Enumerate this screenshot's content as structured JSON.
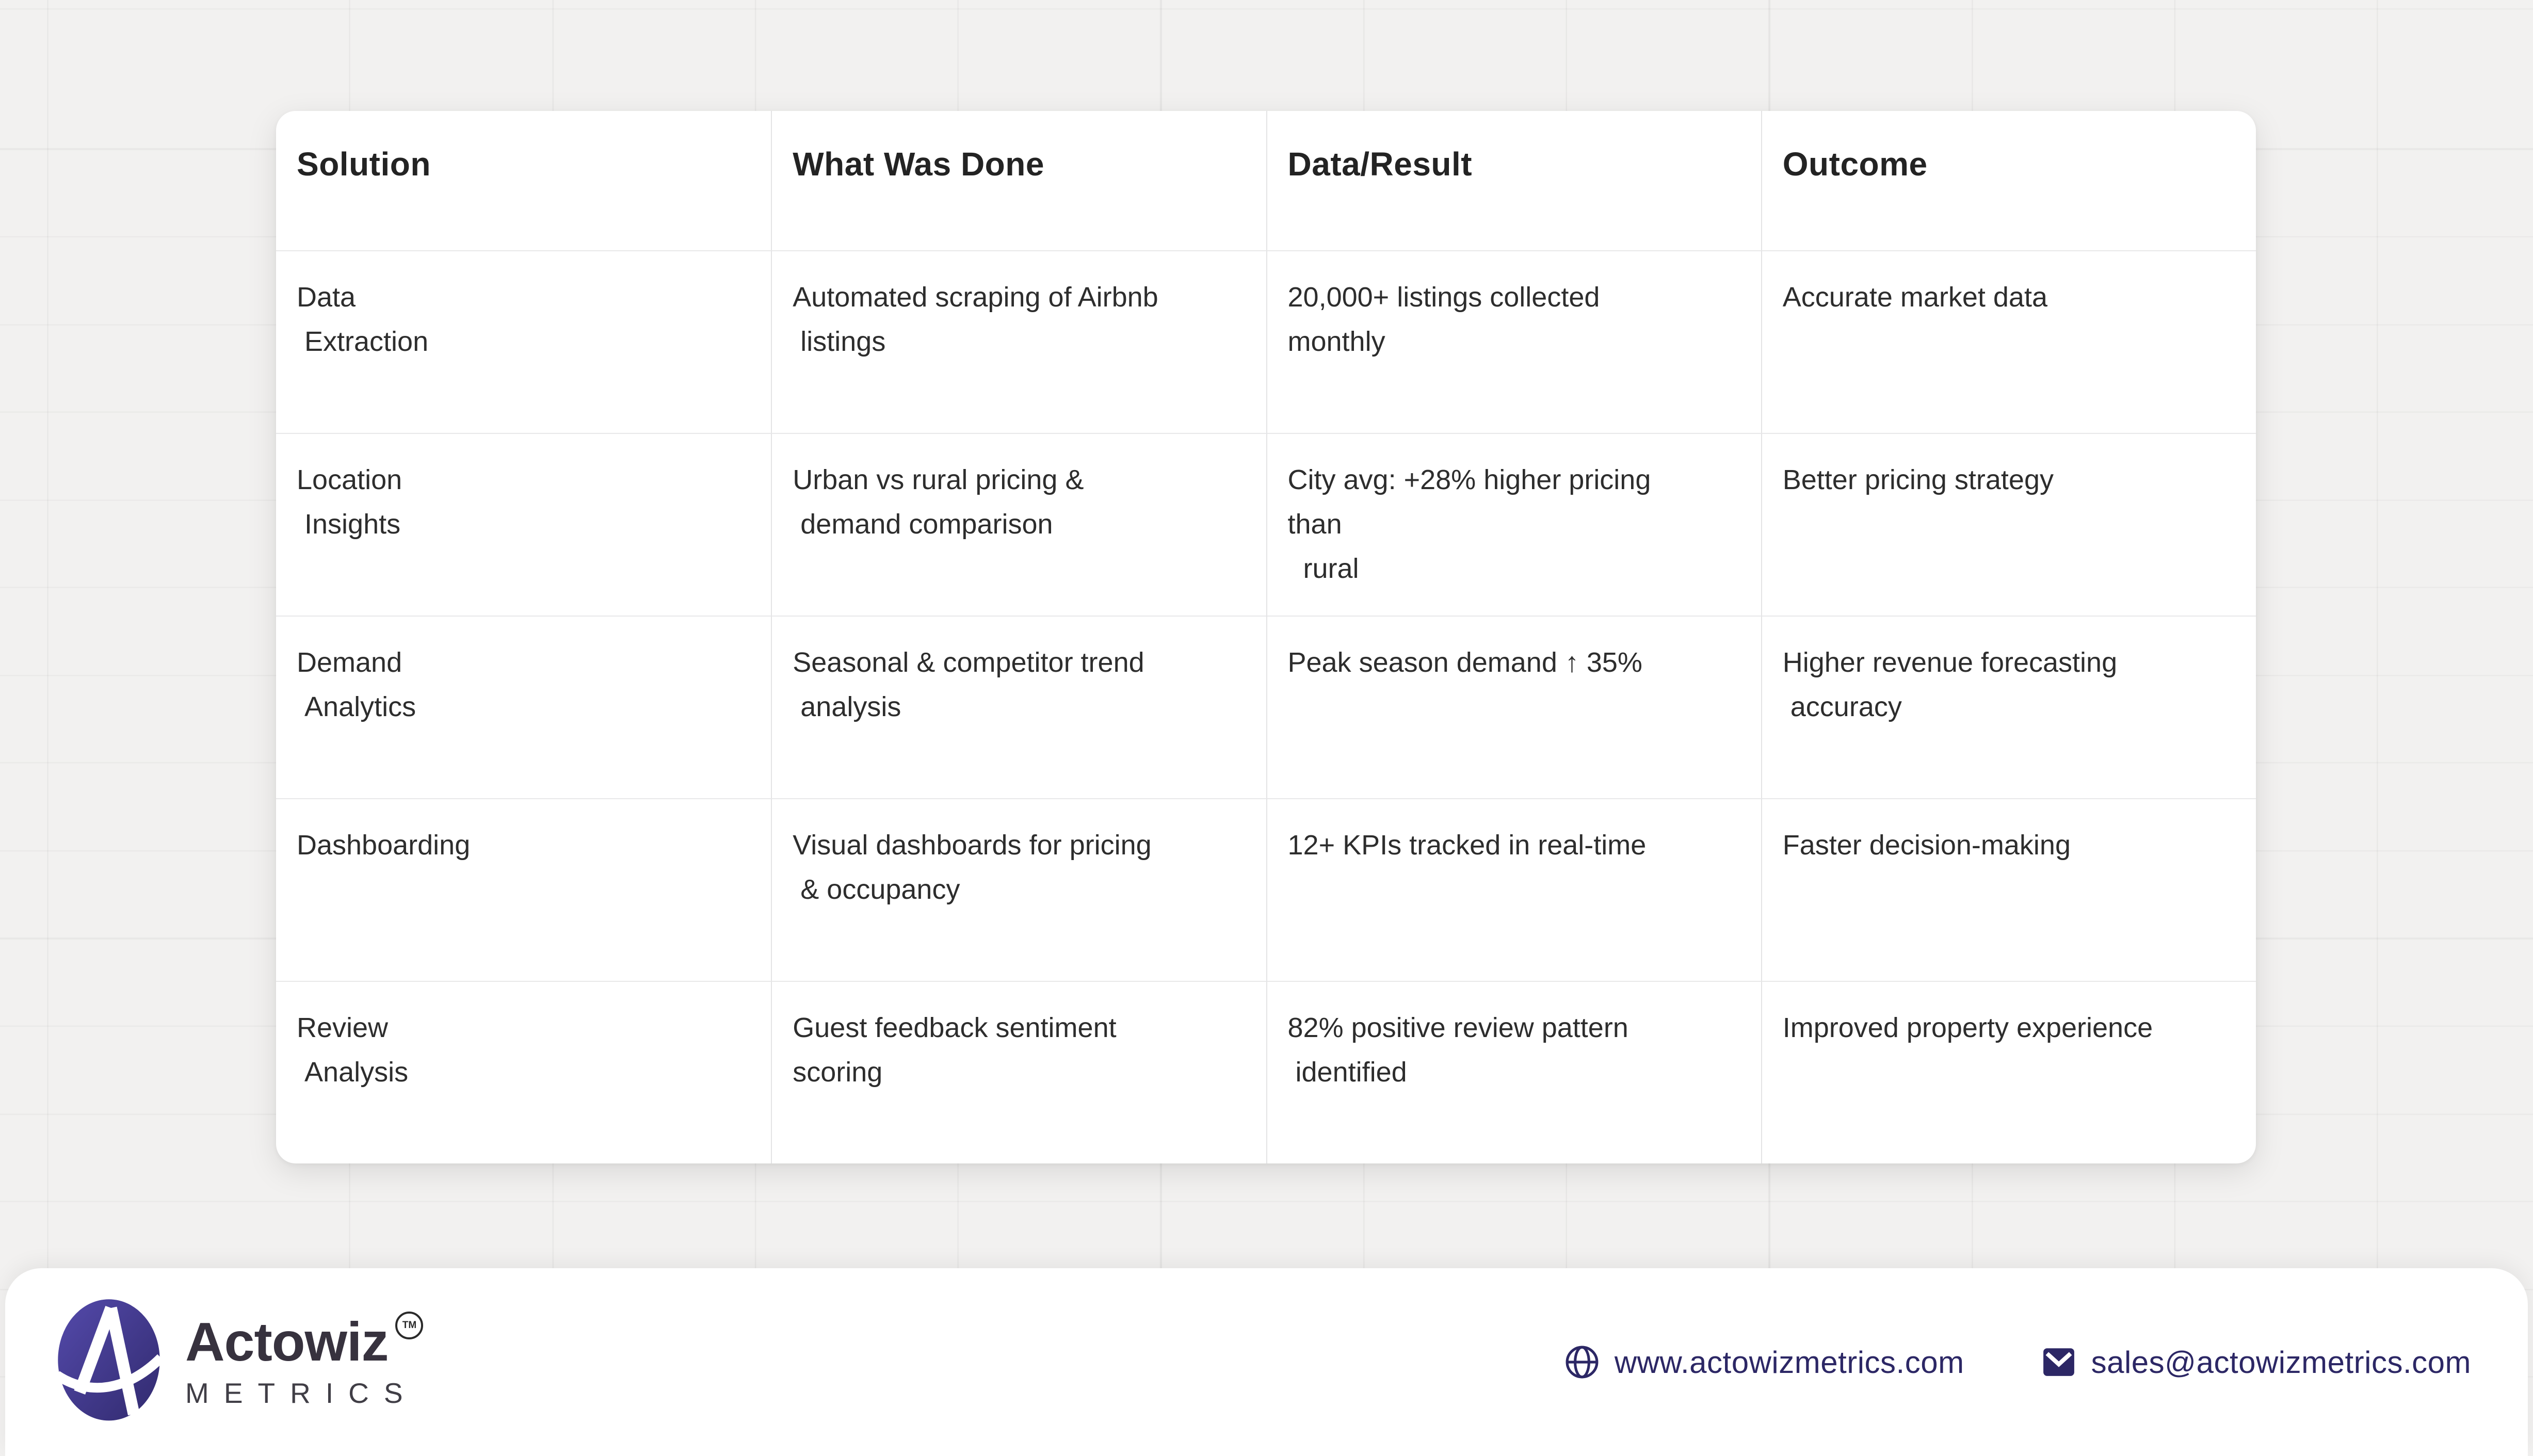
{
  "page": {
    "background_color": "#f2f1f0",
    "card_color": "#ffffff",
    "accent_color": "#2c2765",
    "logo_purple": "#4b41a0"
  },
  "table": {
    "headers": [
      "Solution",
      "What Was Done",
      "Data/Result",
      "Outcome"
    ],
    "rows": [
      [
        "Data\n Extraction",
        "Automated scraping of Airbnb\n listings",
        "20,000+ listings collected\nmonthly",
        "Accurate market data"
      ],
      [
        "Location\n Insights",
        "Urban vs rural pricing &\n demand comparison",
        "City avg: +28% higher pricing\nthan\n  rural",
        "Better pricing strategy"
      ],
      [
        "Demand\n Analytics",
        "Seasonal & competitor trend\n analysis",
        "Peak season demand ↑ 35%",
        "Higher revenue forecasting\n accuracy"
      ],
      [
        "Dashboarding",
        "Visual dashboards for pricing\n & occupancy",
        "12+ KPIs tracked in real-time",
        "Faster decision-making"
      ],
      [
        "Review\n Analysis",
        "Guest feedback sentiment\nscoring",
        "82% positive review pattern\n identified",
        "Improved property experience"
      ]
    ]
  },
  "footer": {
    "brand": "Actowiz",
    "trademark": "TM",
    "brand_subtitle": "METRICS",
    "website": "www.actowizmetrics.com",
    "email": "sales@actowizmetrics.com"
  }
}
